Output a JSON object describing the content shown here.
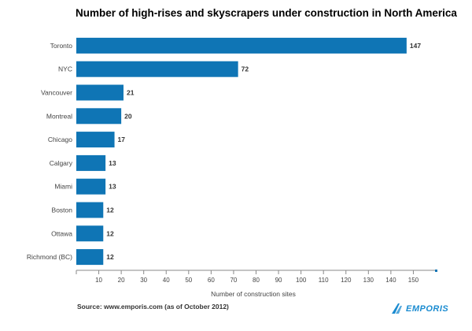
{
  "chart_data": {
    "type": "bar",
    "orientation": "horizontal",
    "title": "Number of high-rises and skyscrapers under construction in North America",
    "xlabel": "Number of construction sites",
    "ylabel": "",
    "categories": [
      "Toronto",
      "NYC",
      "Vancouver",
      "Montreal",
      "Chicago",
      "Calgary",
      "Miami",
      "Boston",
      "Ottawa",
      "Richmond (BC)"
    ],
    "values": [
      147,
      72,
      21,
      20,
      17,
      13,
      13,
      12,
      12,
      12
    ],
    "xlim": [
      0,
      160
    ],
    "xticks": [
      10,
      20,
      30,
      40,
      50,
      60,
      70,
      80,
      90,
      100,
      110,
      120,
      130,
      140,
      150
    ],
    "grid": false,
    "data_labels": true,
    "bar_color": "#0f75b5"
  },
  "source": "Source: www.emporis.com (as of October 2012)",
  "logo": {
    "text": "EMPORIS",
    "color": "#1a8bd0",
    "icon": "emporis-swoosh-icon"
  }
}
